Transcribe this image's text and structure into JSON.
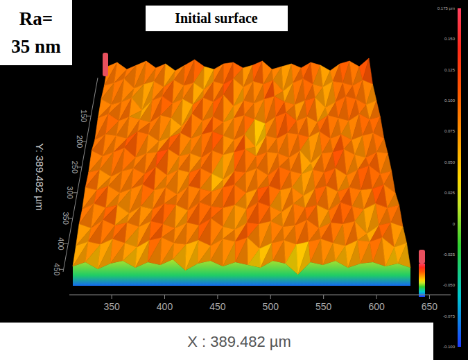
{
  "chart_data": {
    "type": "surface",
    "title": "Initial surface",
    "annotation": [
      "Ra=",
      "35 nm"
    ],
    "x_label": "X : 389.482 µm",
    "y_label": "Y: 389.482 µm",
    "xlim": [
      310,
      670
    ],
    "xticks": [
      350,
      400,
      450,
      500,
      550,
      600,
      650
    ],
    "ylim": [
      75,
      455
    ],
    "yticks": [
      150,
      200,
      250,
      300,
      350,
      400,
      450
    ],
    "surface": {
      "heights": [
        [
          0.08,
          0.11,
          0.06,
          0.09,
          0.12,
          0.07,
          0.1,
          0.05,
          0.09,
          0.13,
          0.08,
          0.06,
          0.1,
          0.11,
          0.07,
          0.09,
          0.12,
          0.06,
          0.08,
          0.1,
          0.07,
          0.11,
          0.09,
          0.05,
          0.1,
          0.12,
          0.08,
          0.14
        ],
        [
          0.07,
          0.09,
          0.12,
          0.05,
          0.08,
          0.1,
          0.06,
          0.11,
          0.07,
          0.09,
          0.04,
          0.1,
          0.08,
          0.12,
          0.06,
          0.1,
          0.08,
          0.11,
          0.03,
          0.09,
          0.12,
          0.08,
          0.06,
          0.1,
          0.09,
          0.07,
          0.11,
          0.08
        ],
        [
          0.1,
          0.06,
          0.08,
          0.11,
          0.02,
          0.09,
          0.12,
          0.07,
          0.1,
          0.06,
          0.11,
          0.08,
          0.13,
          0.05,
          0.09,
          0.07,
          0.1,
          0.12,
          0.08,
          0.06,
          0.09,
          0.11,
          0.04,
          0.08,
          0.12,
          0.1,
          0.06,
          0.09
        ],
        [
          0.09,
          0.12,
          0.07,
          0.1,
          0.08,
          0.06,
          0.11,
          0.09,
          0.03,
          0.12,
          0.07,
          0.1,
          0.06,
          0.09,
          0.11,
          0.08,
          0.05,
          0.1,
          0.13,
          0.07,
          0.1,
          0.06,
          0.11,
          0.09,
          0.07,
          0.12,
          0.08,
          0.1
        ],
        [
          0.06,
          0.1,
          0.09,
          0.07,
          0.12,
          0.1,
          0.05,
          0.08,
          0.11,
          0.07,
          0.1,
          0.12,
          0.09,
          0.06,
          0.1,
          0.01,
          0.09,
          0.07,
          0.11,
          0.1,
          0.08,
          0.12,
          0.07,
          0.1,
          0.06,
          0.09,
          0.11,
          0.07
        ],
        [
          0.11,
          0.07,
          0.1,
          0.13,
          0.06,
          0.09,
          0.1,
          0.12,
          0.07,
          0.09,
          0.06,
          0.11,
          0.08,
          0.1,
          0.12,
          0.07,
          0.1,
          0.09,
          0.06,
          0.11,
          0.02,
          0.09,
          0.1,
          0.12,
          0.08,
          0.06,
          0.1,
          0.09
        ],
        [
          0.08,
          0.1,
          0.05,
          0.09,
          0.11,
          0.07,
          0.12,
          0.06,
          0.1,
          0.08,
          0.11,
          0.07,
          0.03,
          0.09,
          0.08,
          0.11,
          0.06,
          0.12,
          0.09,
          0.07,
          0.1,
          0.08,
          0.11,
          0.06,
          0.1,
          0.13,
          0.07,
          0.09
        ],
        [
          0.1,
          0.08,
          0.11,
          0.06,
          0.09,
          0.12,
          0.08,
          0.1,
          0.05,
          0.11,
          0.09,
          0.07,
          0.1,
          0.12,
          0.06,
          0.09,
          0.11,
          0.08,
          0.1,
          0.04,
          0.09,
          0.11,
          0.07,
          0.1,
          0.08,
          0.09,
          0.12,
          0.06
        ],
        [
          0.07,
          0.11,
          0.08,
          0.1,
          0.04,
          0.09,
          0.07,
          0.11,
          0.1,
          0.06,
          0.12,
          0.09,
          0.08,
          0.1,
          0.07,
          0.12,
          0.09,
          0.05,
          0.11,
          0.08,
          0.1,
          0.06,
          0.12,
          0.09,
          0.07,
          0.11,
          0.08,
          0.1
        ],
        [
          0.09,
          0.06,
          0.12,
          0.08,
          0.1,
          0.07,
          0.11,
          0.09,
          0.06,
          0.1,
          0.08,
          0.13,
          0.07,
          0.05,
          0.1,
          0.09,
          0.11,
          0.07,
          0.08,
          0.12,
          0.06,
          0.1,
          0.09,
          0.11,
          0.02,
          0.08,
          0.1,
          0.07
        ],
        [
          0.06,
          0.09,
          0.07,
          0.11,
          0.08,
          0.05,
          0.1,
          0.12,
          0.08,
          0.07,
          0.1,
          0.06,
          0.11,
          0.09,
          0.12,
          0.04,
          0.08,
          0.1,
          0.07,
          0.09,
          0.11,
          0.08,
          0.06,
          0.1,
          0.09,
          0.12,
          0.05,
          0.08
        ],
        [
          0.04,
          0.07,
          0.02,
          0.06,
          0.08,
          0.03,
          0.07,
          0.05,
          0.09,
          0.01,
          0.06,
          0.08,
          0.04,
          0.07,
          0.05,
          0.03,
          0.08,
          0.06,
          -0.02,
          0.07,
          0.05,
          0.08,
          0.03,
          0.06,
          0.07,
          0.04,
          0.06,
          0.03
        ]
      ]
    },
    "colorbar": {
      "range": [
        -0.1,
        0.175
      ],
      "ticks": [
        {
          "value": 0.175,
          "label": "0.175 µm"
        },
        {
          "value": 0.15,
          "label": "0.150"
        },
        0.125,
        {
          "value": 0.1,
          "label": "0.100"
        },
        0.075,
        {
          "value": 0.05,
          "label": "0.050"
        },
        0.025,
        0,
        -0.025,
        {
          "value": -0.05,
          "label": "-0.050"
        },
        -0.075,
        {
          "value": -0.1,
          "label": "-0.100"
        }
      ]
    }
  }
}
